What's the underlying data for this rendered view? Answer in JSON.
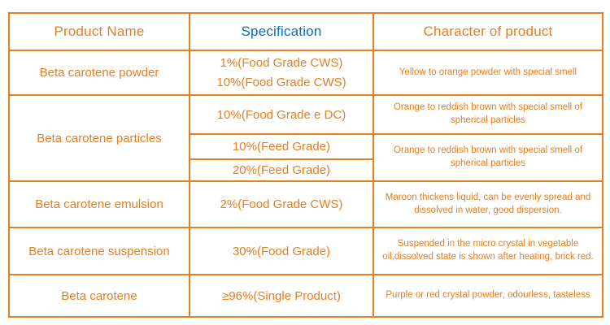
{
  "colors": {
    "border_orange": "#e87e1e",
    "text_orange": "#e87e1e",
    "spec_header_blue": "#0070c0",
    "background": "#ffffff"
  },
  "table": {
    "headers": {
      "product": "Product Name",
      "spec": "Specification",
      "character": "Character of product"
    },
    "rows": {
      "powder": {
        "name": "Beta carotene powder",
        "spec1": "1%(Food Grade CWS)",
        "spec2": "10%(Food Grade CWS)",
        "character": "Yellow to orange powder with special smell"
      },
      "particles": {
        "name": "Beta carotene particles",
        "spec1": "10%(Food Grade e DC)",
        "spec2": "10%(Feed Grade)",
        "spec3": "20%(Feed Grade)",
        "character1": "Orange to reddish brown with special smell of spherical particles",
        "character2": "Orange to reddish brown with special smell of spherical particles"
      },
      "emulsion": {
        "name": "Beta carotene emulsion",
        "spec": "2%(Food Grade CWS)",
        "character": "Maroon thickens liquid, can be evenly spread and dissolved in water, good dispersion."
      },
      "suspension": {
        "name": "Beta carotene suspension",
        "spec": "30%(Food Grade)",
        "character": "Suspended in the micro crystal in vegetable oil,dissolved state is shown after heating, brick red."
      },
      "crystal": {
        "name": "Beta carotene",
        "spec": "≥96%(Single Product)",
        "character": "Purple or red crystal powder, odourless, tasteless"
      }
    }
  }
}
